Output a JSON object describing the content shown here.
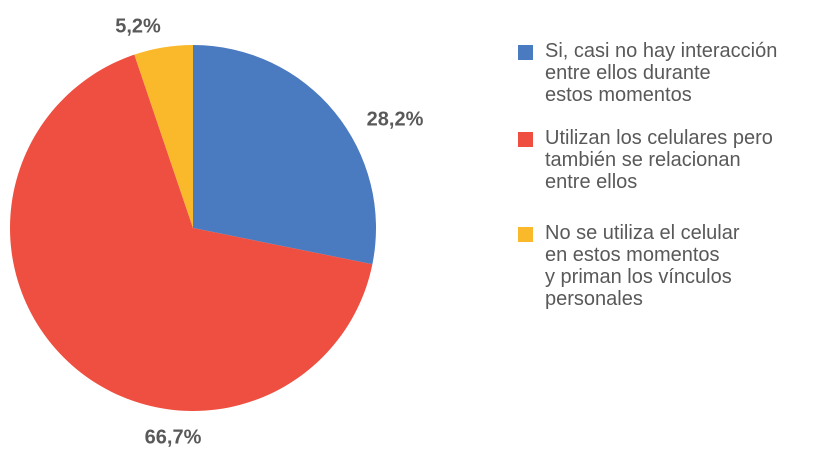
{
  "chart_data": {
    "type": "pie",
    "categories": [
      "Si, casi no hay interacción\nentre ellos durante\nestos momentos",
      "Utilizan los celulares pero\ntambién se relacionan\nentre ellos",
      "No se utiliza el celular\nen estos momentos\ny priman los vínculos\npersonales"
    ],
    "values": [
      28.2,
      66.7,
      5.2
    ],
    "value_labels": [
      "28,2%",
      "66,7%",
      "5,2%"
    ],
    "colors": [
      "#4a7abf",
      "#ee4f40",
      "#fab82b"
    ]
  }
}
